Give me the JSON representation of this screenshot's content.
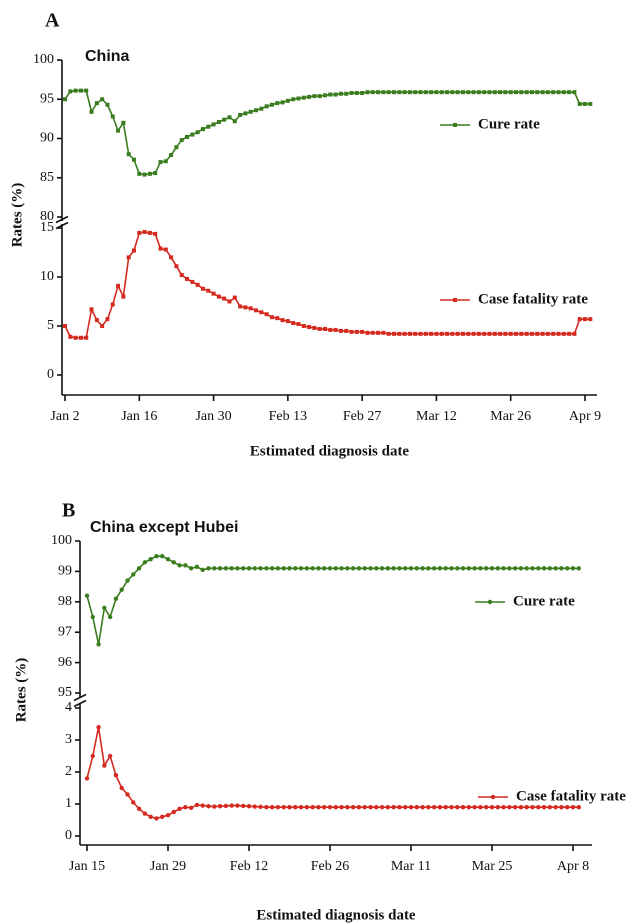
{
  "chart_data": [
    {
      "type": "line",
      "panel_label": "A",
      "title": "China",
      "x_label": "Estimated diagnosis date",
      "y_label": "Rates (%)",
      "categories": [
        "Jan 2",
        null,
        null,
        null,
        null,
        null,
        null,
        null,
        null,
        null,
        null,
        null,
        null,
        null,
        "Jan 16",
        null,
        null,
        null,
        null,
        null,
        null,
        null,
        null,
        null,
        null,
        null,
        null,
        null,
        "Jan 30",
        null,
        null,
        null,
        null,
        null,
        null,
        null,
        null,
        null,
        null,
        null,
        null,
        null,
        "Feb 13",
        null,
        null,
        null,
        null,
        null,
        null,
        null,
        null,
        null,
        null,
        null,
        null,
        null,
        "Feb 27",
        null,
        null,
        null,
        null,
        null,
        null,
        null,
        null,
        null,
        null,
        null,
        null,
        null,
        "Mar 12",
        null,
        null,
        null,
        null,
        null,
        null,
        null,
        null,
        null,
        null,
        null,
        null,
        null,
        "Mar 26",
        null,
        null,
        null,
        null,
        null,
        null,
        null,
        null,
        null,
        null,
        null,
        null,
        null,
        "Apr 9",
        null
      ],
      "series": [
        {
          "name": "Cure rate",
          "color": "#3a7d1e",
          "values": [
            95.0,
            96.0,
            96.1,
            96.1,
            96.1,
            93.4,
            94.5,
            95.0,
            94.3,
            92.8,
            91.0,
            92.0,
            88.0,
            87.3,
            85.5,
            85.4,
            85.5,
            85.6,
            87.0,
            87.1,
            87.9,
            88.9,
            89.8,
            90.2,
            90.5,
            90.8,
            91.2,
            91.5,
            91.8,
            92.1,
            92.4,
            92.7,
            92.2,
            93.0,
            93.2,
            93.4,
            93.6,
            93.8,
            94.1,
            94.3,
            94.5,
            94.6,
            94.8,
            95.0,
            95.1,
            95.2,
            95.3,
            95.4,
            95.4,
            95.5,
            95.6,
            95.6,
            95.7,
            95.7,
            95.8,
            95.8,
            95.8,
            95.9,
            95.9,
            95.9,
            95.9,
            95.9,
            95.9,
            95.9,
            95.9,
            95.9,
            95.9,
            95.9,
            95.9,
            95.9,
            95.9,
            95.9,
            95.9,
            95.9,
            95.9,
            95.9,
            95.9,
            95.9,
            95.9,
            95.9,
            95.9,
            95.9,
            95.9,
            95.9,
            95.9,
            95.9,
            95.9,
            95.9,
            95.9,
            95.9,
            95.9,
            95.9,
            95.9,
            95.9,
            95.9,
            95.9,
            95.9,
            94.4,
            94.4,
            94.4
          ]
        },
        {
          "name": "Case fatality rate",
          "color": "#d42a20",
          "axis": "y2",
          "values": [
            5.0,
            3.9,
            3.8,
            3.8,
            3.8,
            6.7,
            5.6,
            5.0,
            5.7,
            7.2,
            9.1,
            8.0,
            12.0,
            12.7,
            14.5,
            14.6,
            14.5,
            14.4,
            12.9,
            12.8,
            12.0,
            11.1,
            10.2,
            9.8,
            9.5,
            9.2,
            8.8,
            8.6,
            8.3,
            8.0,
            7.8,
            7.5,
            7.9,
            7.0,
            6.9,
            6.8,
            6.6,
            6.4,
            6.2,
            5.9,
            5.8,
            5.6,
            5.5,
            5.3,
            5.2,
            5.0,
            4.9,
            4.8,
            4.7,
            4.7,
            4.6,
            4.6,
            4.5,
            4.5,
            4.4,
            4.4,
            4.4,
            4.3,
            4.3,
            4.3,
            4.3,
            4.2,
            4.2,
            4.2,
            4.2,
            4.2,
            4.2,
            4.2,
            4.2,
            4.2,
            4.2,
            4.2,
            4.2,
            4.2,
            4.2,
            4.2,
            4.2,
            4.2,
            4.2,
            4.2,
            4.2,
            4.2,
            4.2,
            4.2,
            4.2,
            4.2,
            4.2,
            4.2,
            4.2,
            4.2,
            4.2,
            4.2,
            4.2,
            4.2,
            4.2,
            4.2,
            4.2,
            5.7,
            5.7,
            5.7
          ]
        }
      ],
      "ylim": [
        80,
        100
      ],
      "yticks": [
        80,
        85,
        90,
        95,
        100
      ],
      "y2lim": [
        0,
        15
      ],
      "y2ticks": [
        0,
        5,
        10,
        15
      ]
    },
    {
      "type": "line",
      "panel_label": "B",
      "title": "China except Hubei",
      "x_label": "Estimated diagnosis date",
      "y_label": "Rates (%)",
      "categories": [
        "Jan 15",
        null,
        null,
        null,
        null,
        null,
        null,
        null,
        null,
        null,
        null,
        null,
        null,
        null,
        "Jan 29",
        null,
        null,
        null,
        null,
        null,
        null,
        null,
        null,
        null,
        null,
        null,
        null,
        null,
        "Feb 12",
        null,
        null,
        null,
        null,
        null,
        null,
        null,
        null,
        null,
        null,
        null,
        null,
        null,
        "Feb 26",
        null,
        null,
        null,
        null,
        null,
        null,
        null,
        null,
        null,
        null,
        null,
        null,
        null,
        "Mar 11",
        null,
        null,
        null,
        null,
        null,
        null,
        null,
        null,
        null,
        null,
        null,
        null,
        null,
        "Mar 25",
        null,
        null,
        null,
        null,
        null,
        null,
        null,
        null,
        null,
        null,
        null,
        null,
        null,
        "Apr 8",
        null
      ],
      "series": [
        {
          "name": "Cure rate",
          "color": "#3a7d1e",
          "values": [
            98.2,
            97.5,
            96.6,
            97.8,
            97.5,
            98.1,
            98.4,
            98.7,
            98.9,
            99.1,
            99.3,
            99.4,
            99.5,
            99.5,
            99.4,
            99.3,
            99.2,
            99.2,
            99.1,
            99.15,
            99.05,
            99.1,
            99.1,
            99.1,
            99.1,
            99.1,
            99.1,
            99.1,
            99.1,
            99.1,
            99.1,
            99.1,
            99.1,
            99.1,
            99.1,
            99.1,
            99.1,
            99.1,
            99.1,
            99.1,
            99.1,
            99.1,
            99.1,
            99.1,
            99.1,
            99.1,
            99.1,
            99.1,
            99.1,
            99.1,
            99.1,
            99.1,
            99.1,
            99.1,
            99.1,
            99.1,
            99.1,
            99.1,
            99.1,
            99.1,
            99.1,
            99.1,
            99.1,
            99.1,
            99.1,
            99.1,
            99.1,
            99.1,
            99.1,
            99.1,
            99.1,
            99.1,
            99.1,
            99.1,
            99.1,
            99.1,
            99.1,
            99.1,
            99.1,
            99.1,
            99.1,
            99.1,
            99.1,
            99.1,
            99.1,
            99.1
          ]
        },
        {
          "name": "Case fatality rate",
          "color": "#d42a20",
          "axis": "y2",
          "values": [
            1.8,
            2.5,
            3.4,
            2.2,
            2.5,
            1.9,
            1.5,
            1.3,
            1.05,
            0.85,
            0.7,
            0.6,
            0.55,
            0.6,
            0.65,
            0.75,
            0.85,
            0.9,
            0.88,
            0.97,
            0.95,
            0.93,
            0.92,
            0.93,
            0.94,
            0.95,
            0.95,
            0.94,
            0.93,
            0.92,
            0.91,
            0.9,
            0.9,
            0.9,
            0.9,
            0.9,
            0.9,
            0.9,
            0.9,
            0.9,
            0.9,
            0.9,
            0.9,
            0.9,
            0.9,
            0.9,
            0.9,
            0.9,
            0.9,
            0.9,
            0.9,
            0.9,
            0.9,
            0.9,
            0.9,
            0.9,
            0.9,
            0.9,
            0.9,
            0.9,
            0.9,
            0.9,
            0.9,
            0.9,
            0.9,
            0.9,
            0.9,
            0.9,
            0.9,
            0.9,
            0.9,
            0.9,
            0.9,
            0.9,
            0.9,
            0.9,
            0.9,
            0.9,
            0.9,
            0.9,
            0.9,
            0.9,
            0.9,
            0.9,
            0.9,
            0.9
          ]
        }
      ],
      "ylim": [
        95,
        100
      ],
      "yticks": [
        95,
        96,
        97,
        98,
        99,
        100
      ],
      "y2lim": [
        0,
        4
      ],
      "y2ticks": [
        0,
        1,
        2,
        3,
        4
      ]
    }
  ]
}
